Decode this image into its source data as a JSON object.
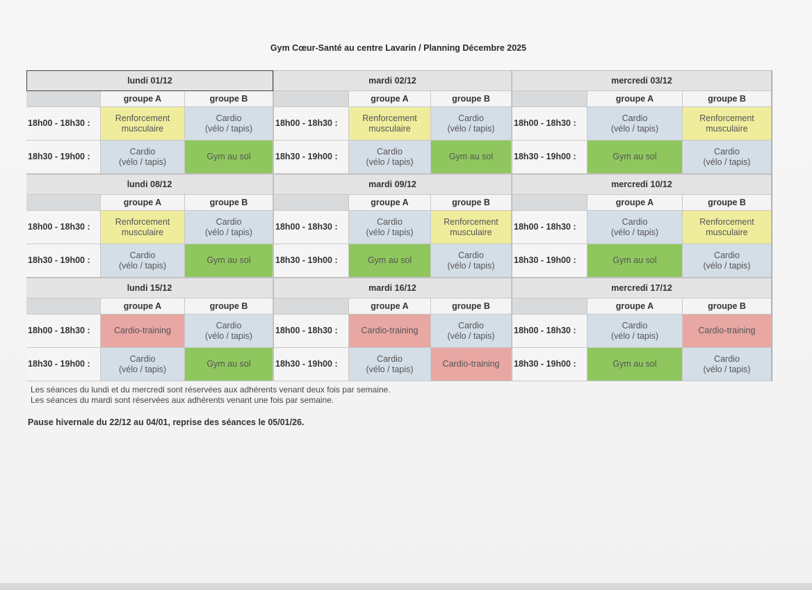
{
  "title": "Gym Cœur-Santé au centre Lavarin / Planning Décembre 2025",
  "group_labels": {
    "a": "groupe A",
    "b": "groupe B"
  },
  "colors": {
    "renforcement": "#efec9c",
    "cardio": "#d4dee7",
    "gym": "#8fc75e",
    "cardio_training": "#e8a7a3"
  },
  "weeks": [
    {
      "days": [
        {
          "label": "lundi 01/12",
          "slots": [
            {
              "time": "18h00 - 18h30 :",
              "a": {
                "text": "Renforcement\nmusculaire",
                "type": "renf"
              },
              "b": {
                "text": "Cardio\n(vélo / tapis)",
                "type": "cardio"
              }
            },
            {
              "time": "18h30 - 19h00 :",
              "a": {
                "text": "Cardio\n(vélo / tapis)",
                "type": "cardio"
              },
              "b": {
                "text": "Gym au sol",
                "type": "gym"
              }
            }
          ]
        },
        {
          "label": "mardi 02/12",
          "slots": [
            {
              "time": "18h00 - 18h30 :",
              "a": {
                "text": "Renforcement\nmusculaire",
                "type": "renf"
              },
              "b": {
                "text": "Cardio\n(vélo / tapis)",
                "type": "cardio"
              }
            },
            {
              "time": "18h30 - 19h00 :",
              "a": {
                "text": "Cardio\n(vélo / tapis)",
                "type": "cardio"
              },
              "b": {
                "text": "Gym au sol",
                "type": "gym"
              }
            }
          ]
        },
        {
          "label": "mercredi 03/12",
          "slots": [
            {
              "time": "18h00 - 18h30 :",
              "a": {
                "text": "Cardio\n(vélo / tapis)",
                "type": "cardio"
              },
              "b": {
                "text": "Renforcement\nmusculaire",
                "type": "renf"
              }
            },
            {
              "time": "18h30 - 19h00 :",
              "a": {
                "text": "Gym au sol",
                "type": "gym"
              },
              "b": {
                "text": "Cardio\n(vélo / tapis)",
                "type": "cardio"
              }
            }
          ]
        }
      ]
    },
    {
      "days": [
        {
          "label": "lundi 08/12",
          "slots": [
            {
              "time": "18h00 - 18h30 :",
              "a": {
                "text": "Renforcement\nmusculaire",
                "type": "renf"
              },
              "b": {
                "text": "Cardio\n(vélo / tapis)",
                "type": "cardio"
              }
            },
            {
              "time": "18h30 - 19h00 :",
              "a": {
                "text": "Cardio\n(vélo / tapis)",
                "type": "cardio"
              },
              "b": {
                "text": "Gym au sol",
                "type": "gym"
              }
            }
          ]
        },
        {
          "label": "mardi 09/12",
          "slots": [
            {
              "time": "18h00 - 18h30 :",
              "a": {
                "text": "Cardio\n(vélo / tapis)",
                "type": "cardio"
              },
              "b": {
                "text": "Renforcement\nmusculaire",
                "type": "renf"
              }
            },
            {
              "time": "18h30 - 19h00 :",
              "a": {
                "text": "Gym au sol",
                "type": "gym"
              },
              "b": {
                "text": "Cardio\n(vélo / tapis)",
                "type": "cardio"
              }
            }
          ]
        },
        {
          "label": "mercredi 10/12",
          "slots": [
            {
              "time": "18h00 - 18h30 :",
              "a": {
                "text": "Cardio\n(vélo / tapis)",
                "type": "cardio"
              },
              "b": {
                "text": "Renforcement\nmusculaire",
                "type": "renf"
              }
            },
            {
              "time": "18h30 - 19h00 :",
              "a": {
                "text": "Gym au sol",
                "type": "gym"
              },
              "b": {
                "text": "Cardio\n(vélo / tapis)",
                "type": "cardio"
              }
            }
          ]
        }
      ]
    },
    {
      "days": [
        {
          "label": "lundi 15/12",
          "slots": [
            {
              "time": "18h00 - 18h30 :",
              "a": {
                "text": "Cardio-training",
                "type": "ct"
              },
              "b": {
                "text": "Cardio\n(vélo / tapis)",
                "type": "cardio"
              }
            },
            {
              "time": "18h30 - 19h00 :",
              "a": {
                "text": "Cardio\n(vélo / tapis)",
                "type": "cardio"
              },
              "b": {
                "text": "Gym au sol",
                "type": "gym"
              }
            }
          ]
        },
        {
          "label": "mardi 16/12",
          "slots": [
            {
              "time": "18h00 - 18h30 :",
              "a": {
                "text": "Cardio-training",
                "type": "ct"
              },
              "b": {
                "text": "Cardio\n(vélo / tapis)",
                "type": "cardio"
              }
            },
            {
              "time": "18h30 - 19h00 :",
              "a": {
                "text": "Cardio\n(vélo / tapis)",
                "type": "cardio"
              },
              "b": {
                "text": "Cardio-training",
                "type": "ct"
              }
            }
          ]
        },
        {
          "label": "mercredi 17/12",
          "slots": [
            {
              "time": "18h00 - 18h30 :",
              "a": {
                "text": "Cardio\n(vélo / tapis)",
                "type": "cardio"
              },
              "b": {
                "text": "Cardio-training",
                "type": "ct"
              }
            },
            {
              "time": "18h30 - 19h00 :",
              "a": {
                "text": "Gym au sol",
                "type": "gym"
              },
              "b": {
                "text": "Cardio\n(vélo / tapis)",
                "type": "cardio"
              }
            }
          ]
        }
      ]
    }
  ],
  "notes": [
    "Les séances du lundi et du mercredi sont réservées aux adhérents venant deux fois par semaine.",
    "Les séances du mardi sont réservées aux adhérents venant une fois par semaine."
  ],
  "pause": "Pause hivernale du 22/12 au 04/01, reprise des séances le 05/01/26."
}
